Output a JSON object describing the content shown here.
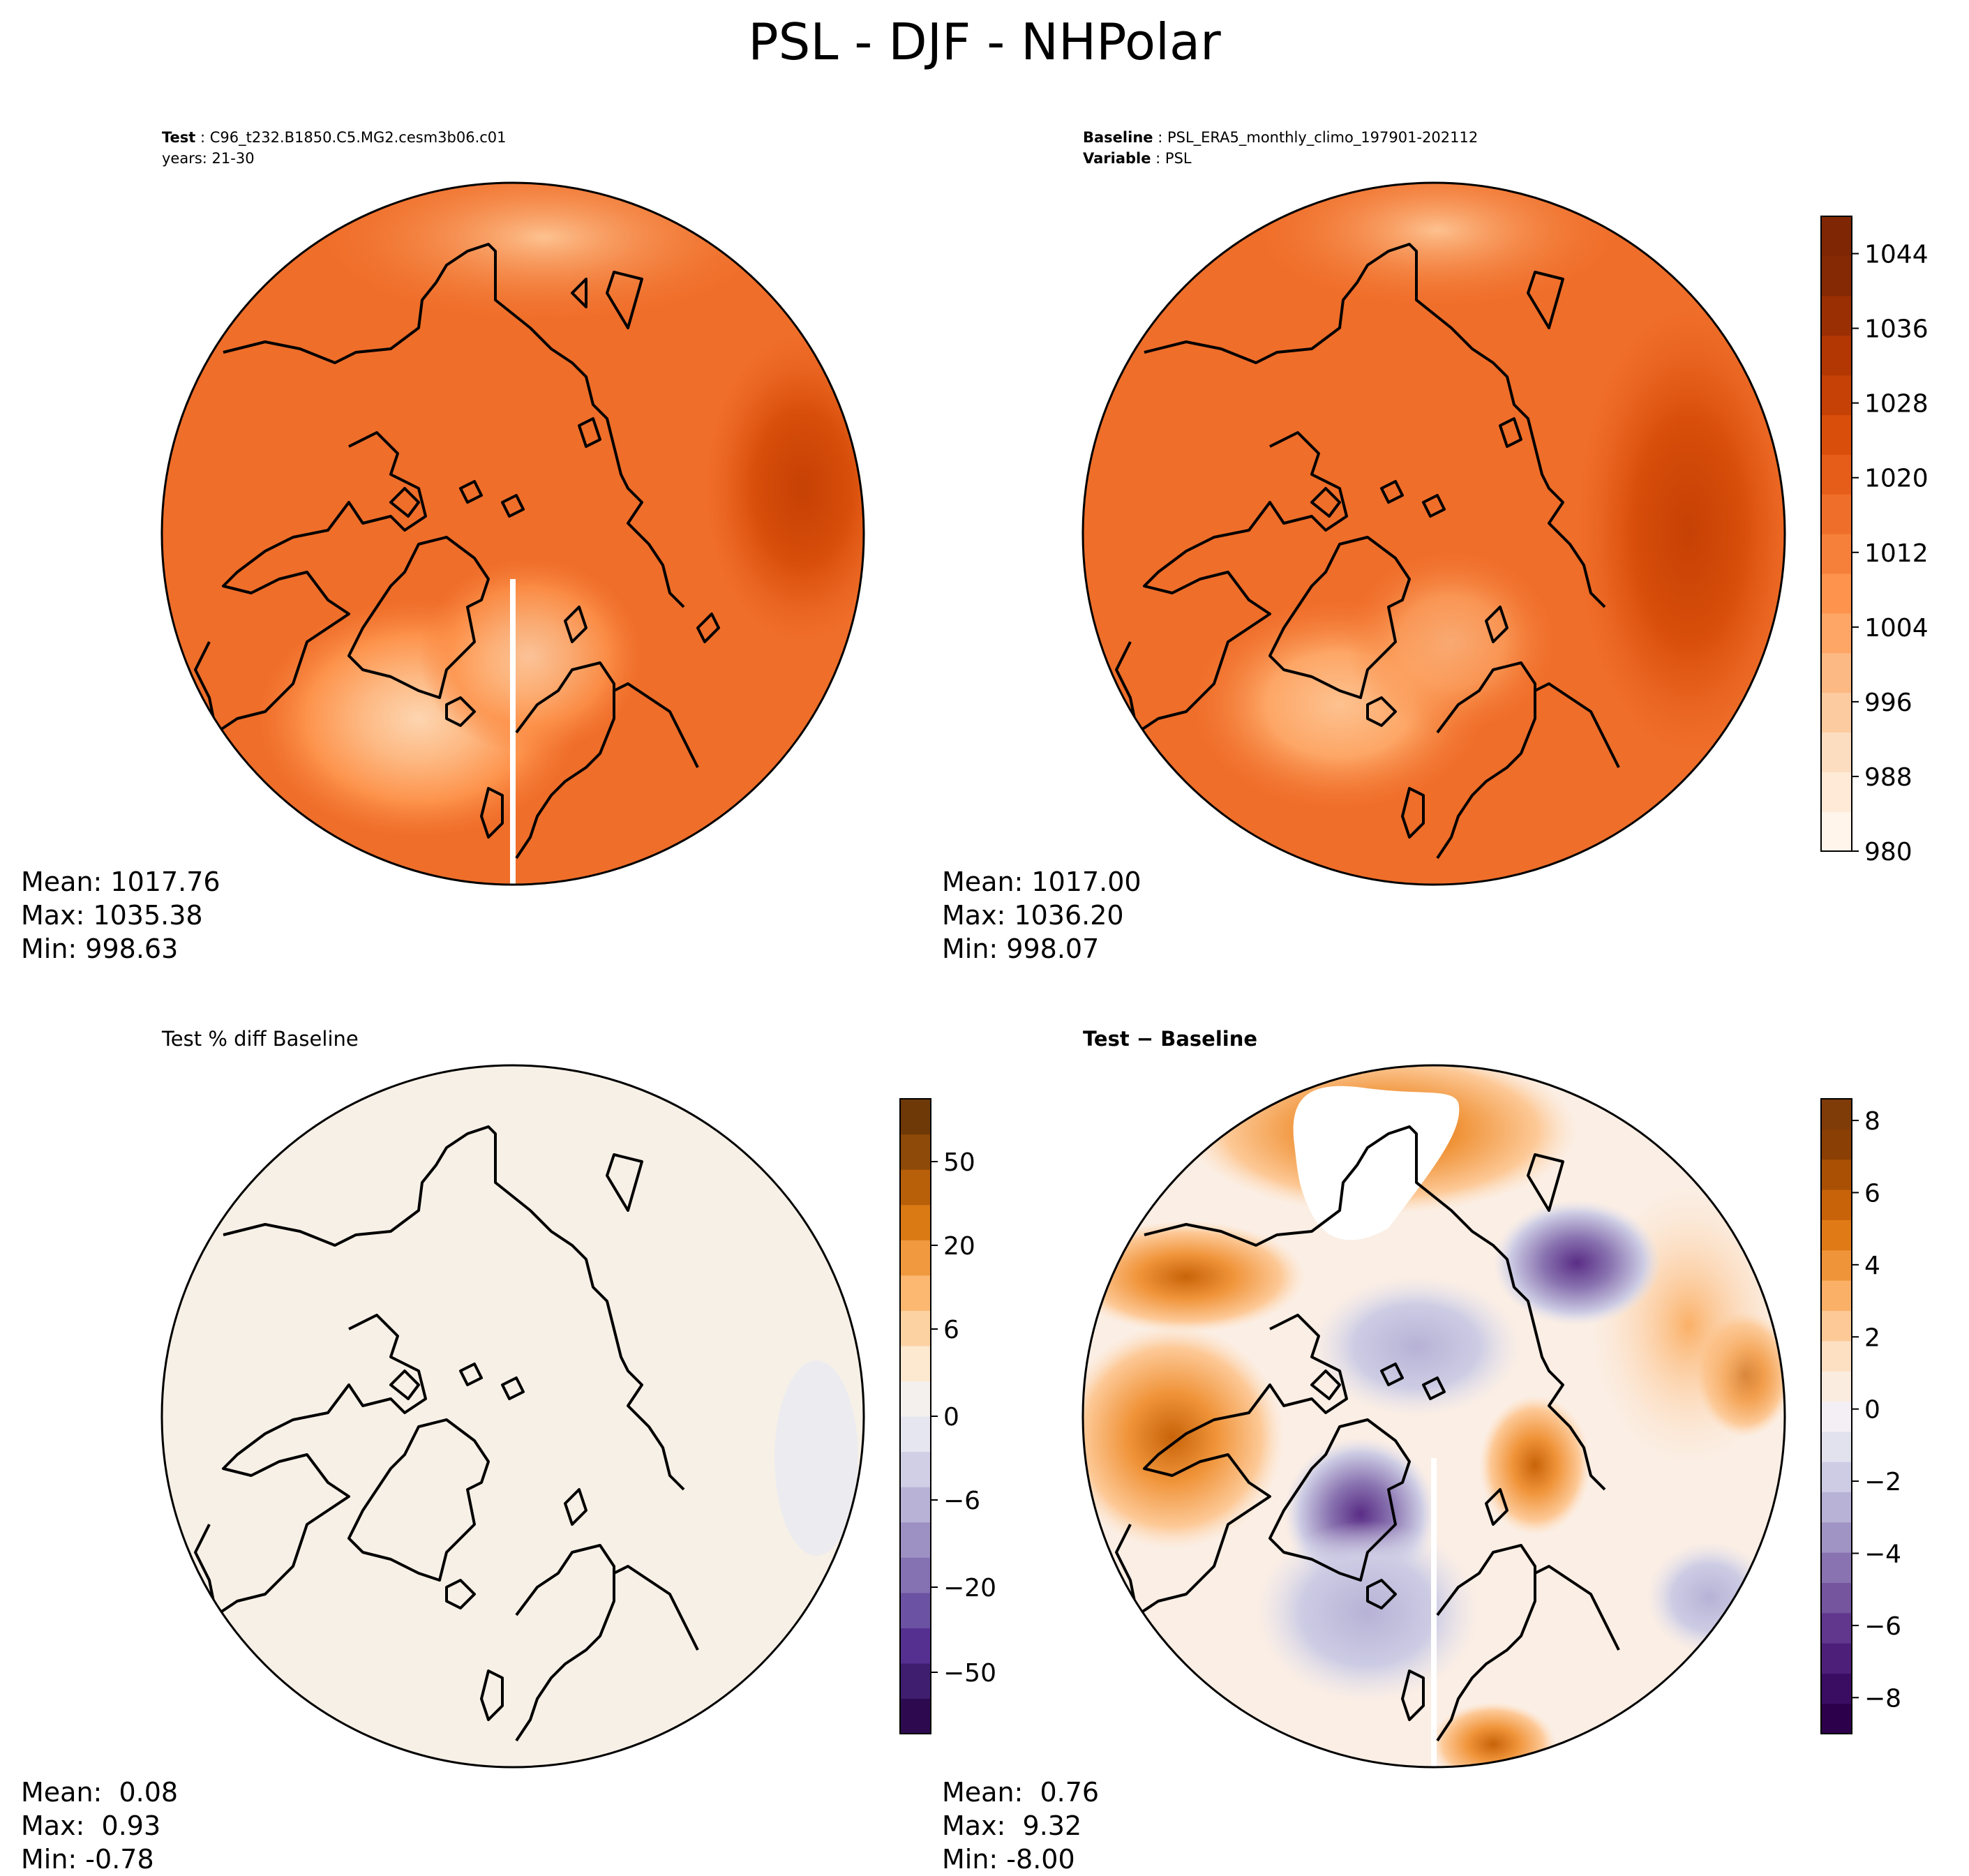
{
  "title": "PSL - DJF - NHPolar",
  "panels": {
    "test": {
      "label_bold": "Test",
      "label_value": "C96_t232.B1850.C5.MG2.cesm3b06.c01",
      "line2": "years: 21-30",
      "stats": {
        "mean": "Mean: 1017.76",
        "max": "Max: 1035.38",
        "min": "Min: 998.63"
      }
    },
    "baseline": {
      "label_bold": "Baseline",
      "label_value": "PSL_ERA5_monthly_climo_197901-202112",
      "var_bold": "Variable",
      "var_value": "PSL",
      "stats": {
        "mean": "Mean: 1017.00",
        "max": "Max: 1036.20",
        "min": "Min: 998.07"
      }
    },
    "pct_diff": {
      "title": "Test % diff Baseline",
      "stats": {
        "mean": "Mean:  0.08",
        "max": "Max:  0.93",
        "min": "Min: -0.78"
      }
    },
    "diff": {
      "title": "Test − Baseline",
      "stats": {
        "mean": "Mean:  0.76",
        "max": "Max:  9.32",
        "min": "Min: -8.00"
      }
    }
  },
  "colorbars": {
    "psl": {
      "ticks": [
        "1044",
        "1036",
        "1028",
        "1020",
        "1012",
        "1004",
        "996",
        "988",
        "980"
      ],
      "colors": [
        "#fff5eb",
        "#feead6",
        "#fdddc0",
        "#fdcba0",
        "#fdb983",
        "#fda666",
        "#fd934c",
        "#f6803a",
        "#ef6e2a",
        "#e55d18",
        "#d84e0a",
        "#c64105",
        "#b23703",
        "#9a2f03",
        "#842904",
        "#7f2704"
      ]
    },
    "pct": {
      "ticks": [
        "50",
        "20",
        "6",
        "0",
        "−6",
        "−20",
        "−50"
      ],
      "colors_low_to_high": [
        "#2d0a50",
        "#3f1d6f",
        "#553090",
        "#6c52a3",
        "#8572b3",
        "#9d90c3",
        "#b7b2d6",
        "#d0cfe6",
        "#e6e6f0",
        "#f4f0ee",
        "#fde8d0",
        "#fdd2a3",
        "#fcb871",
        "#f0993f",
        "#d97a15",
        "#b85f0a",
        "#8e4a08",
        "#6e3906"
      ]
    },
    "diff": {
      "ticks": [
        "8",
        "6",
        "4",
        "2",
        "0",
        "−2",
        "−4",
        "−6",
        "−8"
      ],
      "colors_low_to_high": [
        "#2d004b",
        "#3b0d62",
        "#4d1f79",
        "#60378c",
        "#74559e",
        "#8973b0",
        "#a094c4",
        "#b7b2d6",
        "#cdcce4",
        "#e2e2ef",
        "#f3eff4",
        "#fbece0",
        "#fddfc1",
        "#fdc997",
        "#fbb067",
        "#f0943a",
        "#e07a16",
        "#c86309",
        "#a95005",
        "#8a3f05",
        "#7f3b08"
      ]
    }
  },
  "map_colors": {
    "psl_base": "#ef6e2a",
    "psl_high": "#e55d18",
    "psl_low": "#fda666",
    "psl_min": "#fdcba0",
    "pct_bg": "#f7f0e6",
    "diff_bg": "#fbeee4",
    "coast": "#000000"
  }
}
